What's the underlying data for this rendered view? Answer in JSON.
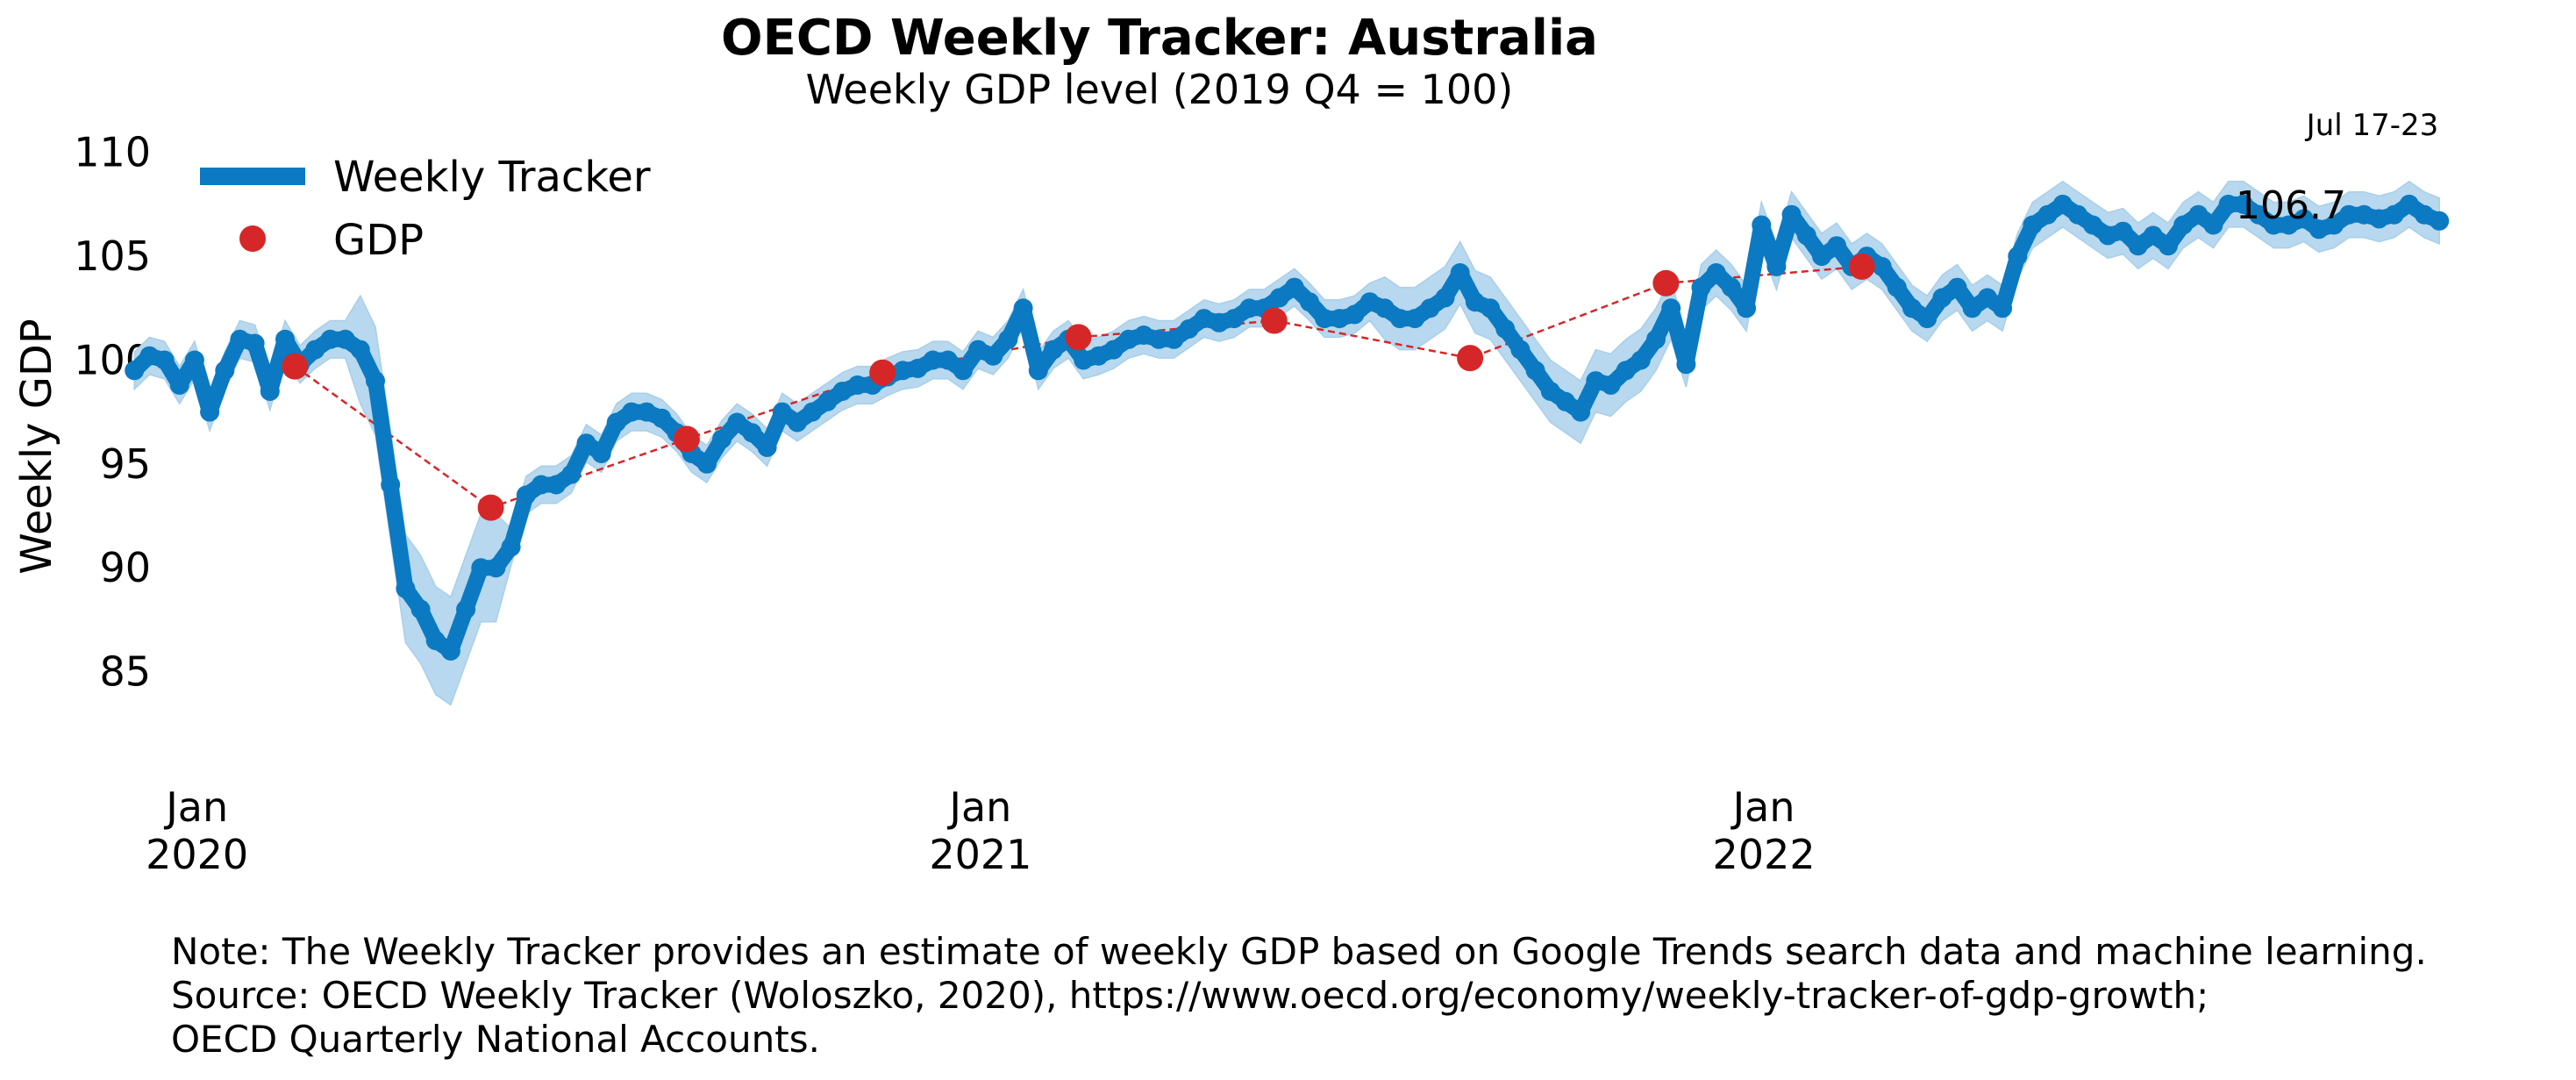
{
  "chart_data": {
    "type": "line",
    "title": "OECD Weekly Tracker: Australia",
    "subtitle": "Weekly GDP level (2019 Q4 = 100)",
    "ylabel": "Weekly GDP",
    "xlabel": "",
    "ylim": [
      80,
      111
    ],
    "yticks": [
      85,
      90,
      95,
      100,
      105,
      110
    ],
    "xlim": [
      -0.05,
      2.6
    ],
    "xticks": [
      {
        "x": 0.0,
        "label1": "Jan",
        "label2": "2020"
      },
      {
        "x": 1.0,
        "label1": "Jan",
        "label2": "2021"
      },
      {
        "x": 2.0,
        "label1": "Jan",
        "label2": "2022"
      }
    ],
    "grid": false,
    "legend": {
      "position": "top-left",
      "entries": [
        "Weekly Tracker",
        "GDP"
      ]
    },
    "last_period_label": "Jul 17-23",
    "last_value_label": "106.7",
    "colors": {
      "tracker": "#0b7ac2",
      "band": "#b7d8ee",
      "gdp": "#d62728"
    },
    "series": [
      {
        "name": "Weekly Tracker",
        "x_start": -0.08,
        "x_step": 0.01923,
        "values": [
          99.5,
          100.2,
          100.0,
          98.8,
          100.0,
          97.5,
          99.5,
          101.0,
          100.8,
          98.5,
          101.0,
          99.8,
          100.5,
          101.0,
          101.0,
          100.5,
          99.0,
          94.0,
          89.0,
          88.0,
          86.5,
          86.0,
          88.0,
          90.0,
          90.0,
          91.0,
          93.5,
          94.0,
          94.0,
          94.5,
          96.0,
          95.5,
          97.0,
          97.5,
          97.5,
          97.2,
          96.5,
          95.5,
          95.0,
          96.2,
          97.0,
          96.5,
          95.8,
          97.5,
          97.0,
          97.5,
          98.0,
          98.5,
          98.8,
          98.8,
          99.2,
          99.5,
          99.6,
          100.0,
          100.0,
          99.5,
          100.5,
          100.2,
          101.0,
          102.5,
          99.5,
          100.5,
          101.0,
          100.0,
          100.2,
          100.5,
          101.0,
          101.2,
          101.0,
          101.0,
          101.5,
          102.0,
          101.8,
          102.0,
          102.5,
          102.5,
          103.0,
          103.5,
          102.8,
          102.0,
          102.0,
          102.2,
          102.8,
          102.5,
          102.0,
          102.0,
          102.5,
          103.0,
          104.2,
          102.8,
          102.5,
          101.5,
          100.5,
          99.5,
          98.5,
          98.0,
          97.5,
          99.0,
          98.8,
          99.5,
          100.0,
          101.0,
          102.5,
          99.8,
          103.5,
          104.2,
          103.5,
          102.5,
          106.5,
          104.5,
          107.0,
          106.0,
          105.0,
          105.5,
          104.5,
          105.0,
          104.5,
          103.5,
          102.5,
          102.0,
          103.0,
          103.5,
          102.5,
          103.0,
          102.5,
          105.0,
          106.5,
          107.0,
          107.5,
          107.0,
          106.5,
          106.0,
          106.2,
          105.5,
          106.0,
          105.5,
          106.5,
          107.0,
          106.5,
          107.5,
          107.5,
          107.0,
          106.5,
          106.5,
          106.8,
          106.3,
          106.5,
          107.0,
          107.0,
          106.8,
          107.0,
          107.5,
          107.0,
          106.7
        ]
      },
      {
        "name": "GDP",
        "x": [
          0.125,
          0.375,
          0.625,
          0.875,
          1.125,
          1.375,
          1.625,
          1.875,
          2.125
        ],
        "values": [
          99.7,
          92.9,
          96.2,
          99.4,
          101.1,
          101.9,
          100.1,
          103.7,
          104.5
        ]
      }
    ]
  },
  "notes": {
    "line1": "Note: The Weekly Tracker provides an estimate of weekly GDP based on Google Trends search data and machine learning.",
    "line2": "Source: OECD Weekly Tracker (Woloszko, 2020), https://www.oecd.org/economy/weekly-tracker-of-gdp-growth;",
    "line3": "OECD Quarterly National Accounts."
  }
}
